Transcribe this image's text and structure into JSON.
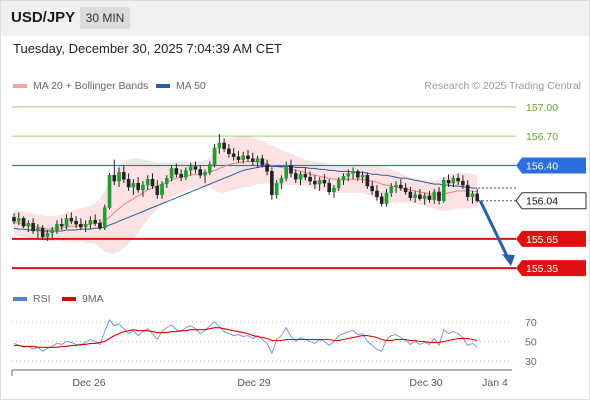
{
  "header": {
    "symbol": "USD/JPY",
    "timeframe": "30 MIN"
  },
  "datetime": "Tuesday, December 30, 2025 7:04:39 AM CET",
  "legend": {
    "ma20_bb": {
      "label": "MA 20 + Bollinger Bands",
      "color": "#f4a3a3"
    },
    "ma50": {
      "label": "MA 50",
      "color": "#2b5c9e"
    }
  },
  "credit": "Research © 2025 Trading Central",
  "rsi_legend": {
    "rsi": {
      "label": "RSI",
      "color": "#5b7fd6"
    },
    "ma9": {
      "label": "9MA",
      "color": "#e00000"
    }
  },
  "chart_data": [
    {
      "type": "candlestick",
      "ylim": [
        155.28,
        157.07
      ],
      "x_ticks": [
        "Dec 26",
        "Dec 29",
        "Dec 30",
        "Jan 4"
      ],
      "current_price": {
        "value": 156.04,
        "label": "156.04"
      },
      "levels": [
        {
          "value": 157.0,
          "label": "157.00",
          "kind": "resistance-target"
        },
        {
          "value": 156.7,
          "label": "156.70",
          "kind": "resistance-target"
        },
        {
          "value": 156.4,
          "label": "156.40",
          "kind": "pivot"
        },
        {
          "value": 155.65,
          "label": "155.65",
          "kind": "support"
        },
        {
          "value": 155.35,
          "label": "155.35",
          "kind": "support"
        }
      ],
      "candles": [
        [
          155.87,
          155.91,
          155.8,
          155.83
        ],
        [
          155.83,
          155.92,
          155.79,
          155.86
        ],
        [
          155.86,
          155.88,
          155.76,
          155.78
        ],
        [
          155.78,
          155.84,
          155.72,
          155.81
        ],
        [
          155.81,
          155.86,
          155.7,
          155.73
        ],
        [
          155.73,
          155.8,
          155.66,
          155.76
        ],
        [
          155.76,
          155.79,
          155.64,
          155.67
        ],
        [
          155.67,
          155.74,
          155.63,
          155.71
        ],
        [
          155.71,
          155.77,
          155.66,
          155.74
        ],
        [
          155.74,
          155.84,
          155.7,
          155.8
        ],
        [
          155.8,
          155.86,
          155.74,
          155.78
        ],
        [
          155.78,
          155.9,
          155.75,
          155.86
        ],
        [
          155.86,
          155.92,
          155.8,
          155.83
        ],
        [
          155.83,
          155.88,
          155.76,
          155.8
        ],
        [
          155.8,
          155.86,
          155.74,
          155.77
        ],
        [
          155.77,
          155.84,
          155.72,
          155.8
        ],
        [
          155.8,
          155.88,
          155.75,
          155.84
        ],
        [
          155.84,
          155.9,
          155.78,
          155.81
        ],
        [
          155.81,
          155.85,
          155.74,
          155.76
        ],
        [
          155.76,
          156.0,
          155.74,
          155.97
        ],
        [
          155.97,
          156.32,
          155.95,
          156.3
        ],
        [
          156.3,
          156.46,
          156.2,
          156.24
        ],
        [
          156.24,
          156.38,
          156.18,
          156.33
        ],
        [
          156.33,
          156.4,
          156.22,
          156.26
        ],
        [
          156.26,
          156.32,
          156.14,
          156.18
        ],
        [
          156.18,
          156.26,
          156.1,
          156.22
        ],
        [
          156.22,
          156.28,
          156.12,
          156.15
        ],
        [
          156.15,
          156.24,
          156.08,
          156.2
        ],
        [
          156.2,
          156.3,
          156.15,
          156.26
        ],
        [
          156.26,
          156.32,
          156.16,
          156.19
        ],
        [
          156.19,
          156.25,
          156.06,
          156.1
        ],
        [
          156.1,
          156.24,
          156.06,
          156.21
        ],
        [
          156.21,
          156.3,
          156.17,
          156.27
        ],
        [
          156.27,
          156.4,
          156.24,
          156.37
        ],
        [
          156.37,
          156.42,
          156.28,
          156.31
        ],
        [
          156.31,
          156.36,
          156.24,
          156.28
        ],
        [
          156.28,
          156.38,
          156.25,
          156.35
        ],
        [
          156.35,
          156.43,
          156.3,
          156.39
        ],
        [
          156.39,
          156.44,
          156.32,
          156.36
        ],
        [
          156.36,
          156.4,
          156.27,
          156.3
        ],
        [
          156.3,
          156.36,
          156.22,
          156.33
        ],
        [
          156.33,
          156.44,
          156.3,
          156.41
        ],
        [
          156.41,
          156.62,
          156.38,
          156.58
        ],
        [
          156.58,
          156.72,
          156.52,
          156.63
        ],
        [
          156.63,
          156.68,
          156.54,
          156.57
        ],
        [
          156.57,
          156.62,
          156.48,
          156.52
        ],
        [
          156.52,
          156.58,
          156.45,
          156.49
        ],
        [
          156.49,
          156.55,
          156.43,
          156.46
        ],
        [
          156.46,
          156.54,
          156.42,
          156.5
        ],
        [
          156.5,
          156.56,
          156.44,
          156.47
        ],
        [
          156.47,
          156.53,
          156.4,
          156.44
        ],
        [
          156.44,
          156.5,
          156.38,
          156.47
        ],
        [
          156.47,
          156.51,
          156.38,
          156.41
        ],
        [
          156.41,
          156.46,
          156.3,
          156.34
        ],
        [
          156.34,
          156.38,
          156.05,
          156.1
        ],
        [
          156.1,
          156.25,
          156.06,
          156.22
        ],
        [
          156.22,
          156.3,
          156.16,
          156.27
        ],
        [
          156.27,
          156.44,
          156.24,
          156.4
        ],
        [
          156.4,
          156.46,
          156.28,
          156.32
        ],
        [
          156.32,
          156.36,
          156.22,
          156.26
        ],
        [
          156.26,
          156.34,
          156.2,
          156.31
        ],
        [
          156.31,
          156.38,
          156.25,
          156.28
        ],
        [
          156.28,
          156.34,
          156.2,
          156.24
        ],
        [
          156.24,
          156.3,
          156.16,
          156.21
        ],
        [
          156.21,
          156.28,
          156.14,
          156.25
        ],
        [
          156.25,
          156.31,
          156.18,
          156.22
        ],
        [
          156.22,
          156.26,
          156.1,
          156.13
        ],
        [
          156.13,
          156.2,
          156.07,
          156.17
        ],
        [
          156.17,
          156.28,
          156.14,
          156.25
        ],
        [
          156.25,
          156.32,
          156.2,
          156.29
        ],
        [
          156.29,
          156.36,
          156.24,
          156.32
        ],
        [
          156.32,
          156.38,
          156.26,
          156.34
        ],
        [
          156.34,
          156.36,
          156.24,
          156.28
        ],
        [
          156.28,
          156.34,
          156.22,
          156.3
        ],
        [
          156.3,
          156.33,
          156.16,
          156.19
        ],
        [
          156.19,
          156.24,
          156.1,
          156.14
        ],
        [
          156.14,
          156.2,
          156.04,
          156.08
        ],
        [
          156.08,
          156.12,
          155.98,
          156.01
        ],
        [
          156.01,
          156.16,
          155.98,
          156.12
        ],
        [
          156.12,
          156.22,
          156.08,
          156.18
        ],
        [
          156.18,
          156.24,
          156.12,
          156.2
        ],
        [
          156.2,
          156.26,
          156.14,
          156.17
        ],
        [
          156.17,
          156.22,
          156.1,
          156.13
        ],
        [
          156.13,
          156.18,
          156.04,
          156.07
        ],
        [
          156.07,
          156.14,
          156.02,
          156.1
        ],
        [
          156.1,
          156.16,
          156.04,
          156.06
        ],
        [
          156.06,
          156.12,
          156.0,
          156.09
        ],
        [
          156.09,
          156.14,
          156.02,
          156.05
        ],
        [
          156.05,
          156.16,
          156.01,
          156.13
        ],
        [
          156.13,
          156.18,
          156.0,
          156.04
        ],
        [
          156.04,
          156.28,
          156.02,
          156.25
        ],
        [
          156.25,
          156.31,
          156.18,
          156.22
        ],
        [
          156.22,
          156.3,
          156.18,
          156.27
        ],
        [
          156.27,
          156.32,
          156.2,
          156.24
        ],
        [
          156.24,
          156.3,
          156.16,
          156.2
        ],
        [
          156.2,
          156.25,
          156.04,
          156.08
        ],
        [
          156.08,
          156.14,
          156.01,
          156.11
        ],
        [
          156.11,
          156.16,
          156.02,
          156.04
        ]
      ],
      "ma20": [
        155.82,
        155.81,
        155.8,
        155.79,
        155.78,
        155.77,
        155.76,
        155.75,
        155.75,
        155.76,
        155.76,
        155.77,
        155.78,
        155.78,
        155.79,
        155.79,
        155.8,
        155.81,
        155.81,
        155.83,
        155.87,
        155.92,
        155.96,
        156.0,
        156.03,
        156.06,
        156.09,
        156.12,
        156.15,
        156.17,
        156.19,
        156.21,
        156.23,
        156.25,
        156.27,
        156.28,
        156.29,
        156.3,
        156.31,
        156.31,
        156.32,
        156.33,
        156.35,
        156.37,
        156.39,
        156.41,
        156.42,
        156.43,
        156.44,
        156.44,
        156.44,
        156.44,
        156.43,
        156.42,
        156.4,
        156.39,
        156.38,
        156.37,
        156.36,
        156.35,
        156.34,
        156.33,
        156.31,
        156.3,
        156.29,
        156.28,
        156.27,
        156.26,
        156.26,
        156.26,
        156.26,
        156.26,
        156.26,
        156.26,
        156.25,
        156.24,
        156.23,
        156.21,
        156.2,
        156.19,
        156.18,
        156.17,
        156.16,
        156.15,
        156.14,
        156.13,
        156.12,
        156.11,
        156.1,
        156.1,
        156.11,
        156.12,
        156.13,
        156.14,
        156.14,
        156.14,
        156.14,
        156.13
      ],
      "bb_upper": [
        155.95,
        155.94,
        155.93,
        155.92,
        155.91,
        155.9,
        155.89,
        155.88,
        155.88,
        155.89,
        155.9,
        155.92,
        155.94,
        155.95,
        155.96,
        155.97,
        155.99,
        156.02,
        156.06,
        156.14,
        156.24,
        156.34,
        156.4,
        156.44,
        156.46,
        156.47,
        156.47,
        156.46,
        156.45,
        156.44,
        156.43,
        156.42,
        156.42,
        156.43,
        156.44,
        156.44,
        156.44,
        156.44,
        156.44,
        156.44,
        156.45,
        156.48,
        156.55,
        156.62,
        156.66,
        156.68,
        156.69,
        156.7,
        156.7,
        156.7,
        156.69,
        156.67,
        156.65,
        156.62,
        156.61,
        156.58,
        156.56,
        156.54,
        156.52,
        156.5,
        156.48,
        156.46,
        156.45,
        156.44,
        156.43,
        156.42,
        156.41,
        156.4,
        156.4,
        156.4,
        156.4,
        156.4,
        156.4,
        156.4,
        156.4,
        156.4,
        156.4,
        156.39,
        156.38,
        156.36,
        156.34,
        156.32,
        156.3,
        156.28,
        156.27,
        156.26,
        156.25,
        156.25,
        156.24,
        156.26,
        156.28,
        156.3,
        156.31,
        156.32,
        156.32,
        156.32,
        156.31,
        156.3
      ],
      "bb_lower": [
        155.69,
        155.68,
        155.67,
        155.66,
        155.65,
        155.64,
        155.63,
        155.62,
        155.62,
        155.63,
        155.62,
        155.62,
        155.62,
        155.61,
        155.62,
        155.61,
        155.61,
        155.6,
        155.56,
        155.52,
        155.5,
        155.5,
        155.52,
        155.56,
        155.6,
        155.65,
        155.71,
        155.78,
        155.85,
        155.9,
        155.95,
        156.0,
        156.04,
        156.07,
        156.1,
        156.12,
        156.14,
        156.16,
        156.18,
        156.18,
        156.19,
        156.18,
        156.15,
        156.12,
        156.12,
        156.14,
        156.15,
        156.16,
        156.18,
        156.18,
        156.19,
        156.21,
        156.21,
        156.22,
        156.19,
        156.2,
        156.2,
        156.2,
        156.2,
        156.2,
        156.2,
        156.2,
        156.17,
        156.16,
        156.15,
        156.14,
        156.13,
        156.12,
        156.12,
        156.12,
        156.12,
        156.12,
        156.12,
        156.12,
        156.1,
        156.08,
        156.06,
        156.03,
        156.02,
        156.02,
        156.02,
        156.02,
        156.02,
        156.02,
        156.01,
        156.0,
        155.99,
        155.97,
        155.96,
        155.94,
        155.94,
        155.94,
        155.95,
        155.96,
        155.96,
        155.96,
        155.97,
        155.96
      ],
      "ma50": [
        155.76,
        155.75,
        155.75,
        155.74,
        155.74,
        155.74,
        155.73,
        155.73,
        155.73,
        155.73,
        155.73,
        155.74,
        155.74,
        155.74,
        155.75,
        155.75,
        155.75,
        155.76,
        155.76,
        155.77,
        155.79,
        155.81,
        155.83,
        155.85,
        155.87,
        155.89,
        155.91,
        155.93,
        155.95,
        155.97,
        155.99,
        156.01,
        156.03,
        156.05,
        156.07,
        156.09,
        156.11,
        156.13,
        156.15,
        156.17,
        156.19,
        156.21,
        156.23,
        156.25,
        156.27,
        156.29,
        156.31,
        156.33,
        156.35,
        156.36,
        156.37,
        156.38,
        156.39,
        156.39,
        156.39,
        156.39,
        156.39,
        156.39,
        156.39,
        156.38,
        156.38,
        156.38,
        156.37,
        156.37,
        156.36,
        156.36,
        156.35,
        156.35,
        156.34,
        156.34,
        156.34,
        156.33,
        156.33,
        156.33,
        156.32,
        156.31,
        156.31,
        156.3,
        156.3,
        156.29,
        156.28,
        156.27,
        156.27,
        156.26,
        156.25,
        156.24,
        156.23,
        156.22,
        156.21,
        156.21,
        156.2,
        156.2,
        156.19,
        156.19,
        156.18,
        156.18,
        156.17,
        156.17
      ]
    },
    {
      "type": "line",
      "title": "RSI",
      "y_ticks": [
        70,
        50,
        30
      ],
      "ylim": [
        25,
        80
      ],
      "rsi": [
        48,
        46,
        44,
        45,
        42,
        44,
        40,
        43,
        45,
        48,
        47,
        50,
        49,
        47,
        46,
        49,
        52,
        50,
        47,
        60,
        72,
        66,
        68,
        63,
        58,
        61,
        56,
        60,
        63,
        58,
        52,
        60,
        64,
        67,
        62,
        60,
        64,
        66,
        63,
        58,
        61,
        66,
        70,
        65,
        60,
        58,
        56,
        57,
        55,
        56,
        53,
        56,
        52,
        48,
        38,
        52,
        56,
        64,
        55,
        50,
        54,
        52,
        50,
        48,
        52,
        50,
        46,
        50,
        56,
        58,
        60,
        61,
        57,
        58,
        50,
        46,
        42,
        40,
        52,
        56,
        57,
        54,
        51,
        47,
        50,
        47,
        49,
        47,
        53,
        46,
        62,
        58,
        60,
        58,
        54,
        46,
        48,
        44
      ],
      "ma9": [
        46,
        46,
        45,
        45,
        45,
        44,
        44,
        44,
        44,
        44,
        45,
        45,
        46,
        46,
        47,
        47,
        48,
        48,
        49,
        50,
        53,
        56,
        58,
        60,
        61,
        62,
        61,
        61,
        61,
        60,
        59,
        59,
        59,
        60,
        60,
        61,
        61,
        62,
        62,
        62,
        62,
        63,
        64,
        64,
        63,
        62,
        61,
        60,
        59,
        58,
        56,
        55,
        54,
        53,
        51,
        51,
        51,
        52,
        52,
        52,
        52,
        52,
        52,
        52,
        52,
        52,
        52,
        51,
        51,
        52,
        53,
        54,
        55,
        56,
        56,
        55,
        54,
        52,
        51,
        51,
        52,
        52,
        52,
        51,
        51,
        50,
        50,
        49,
        49,
        49,
        50,
        51,
        52,
        53,
        53,
        53,
        52,
        51
      ]
    }
  ]
}
